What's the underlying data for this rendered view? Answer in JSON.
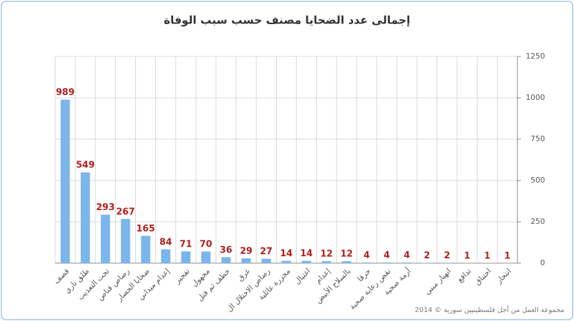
{
  "chart_data": {
    "type": "bar",
    "title": "إجمالى عدد الضحايا مصنف حسب سبب الوفاة",
    "credit": "مجموعة العمل من أجل فلسطينيين سورية © 2014",
    "categories": [
      "قصف",
      "طلق ناري",
      "تحت التعذيب",
      "رصاص قناص",
      "ضحايا الحصار",
      "إعدام ميداني",
      "تفجير",
      "مجهول",
      "خطف ثم قتل",
      "غرق",
      "رصاص الاحتلال ال",
      "مجزرة عائلية",
      "اغتيال",
      "إعدام",
      "بالسلاح الأبيض",
      "حرقا",
      "نقص رعاية صحية",
      "أزمة صحية",
      null,
      "انهيار مبنى",
      "تدافع",
      "اختناق",
      "انتحار"
    ],
    "values": [
      989,
      549,
      293,
      267,
      165,
      84,
      71,
      70,
      36,
      29,
      27,
      14,
      14,
      12,
      12,
      4,
      4,
      4,
      2,
      2,
      1,
      1,
      1
    ],
    "color": "#7cb5ec",
    "label_color": "#b01e1e",
    "ylim": [
      0,
      1250
    ],
    "yticks": [
      0,
      250,
      500,
      750,
      1000,
      1250
    ],
    "grid": true,
    "y_axis_side": "right"
  }
}
